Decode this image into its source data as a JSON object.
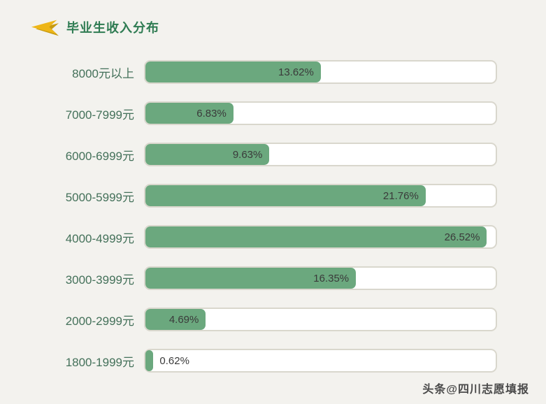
{
  "header": {
    "title": "毕业生收入分布",
    "icon": "gold-flag-left-icon"
  },
  "chart_data": {
    "type": "bar",
    "orientation": "horizontal",
    "title": "毕业生收入分布",
    "categories": [
      "8000元以上",
      "7000-7999元",
      "6000-6999元",
      "5000-5999元",
      "4000-4999元",
      "3000-3999元",
      "2000-2999元",
      "1800-1999元"
    ],
    "values": [
      13.62,
      6.83,
      9.63,
      21.76,
      26.52,
      16.35,
      4.69,
      0.62
    ],
    "value_labels": [
      "13.62%",
      "6.83%",
      "9.63%",
      "21.76%",
      "26.52%",
      "16.35%",
      "4.69%",
      "0.62%"
    ],
    "xlabel": "",
    "ylabel": "",
    "xlim": [
      0,
      27.2
    ],
    "grid": false,
    "legend": false,
    "bar_color": "#6ba87e",
    "track_color": "#ffffff",
    "track_border_color": "#d9d7cd",
    "label_color": "#44715a",
    "value_color": "#3a3a3a"
  },
  "footer": {
    "watermark": "头条@四川志愿填报"
  }
}
